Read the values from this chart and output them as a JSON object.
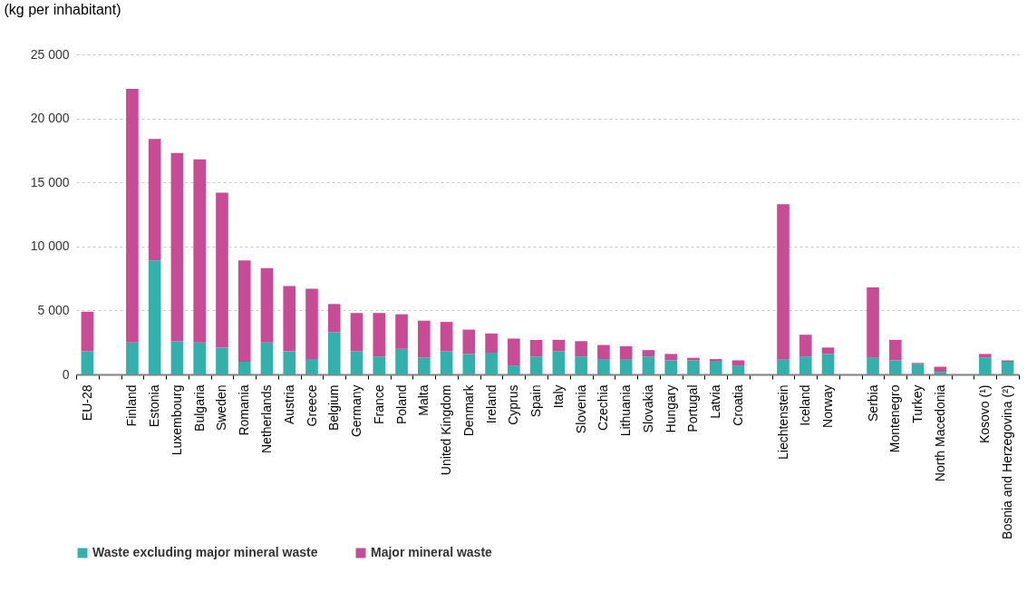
{
  "chart_data": {
    "type": "bar",
    "stacked": true,
    "ylabel": "(kg per inhabitant)",
    "categories": [
      "EU-28",
      null,
      "Finland",
      "Estonia",
      "Luxembourg",
      "Bulgaria",
      "Sweden",
      "Romania",
      "Netherlands",
      "Austria",
      "Greece",
      "Belgium",
      "Germany",
      "France",
      "Poland",
      "Malta",
      "United Kingdom",
      "Denmark",
      "Ireland",
      "Cyprus",
      "Spain",
      "Italy",
      "Slovenia",
      "Czechia",
      "Lithuania",
      "Slovakia",
      "Hungary",
      "Portugal",
      "Latvia",
      "Croatia",
      null,
      "Liechtenstein",
      "Iceland",
      "Norway",
      null,
      "Serbia",
      "Montenegro",
      "Turkey",
      "North Macedonia",
      null,
      "Kosovo (¹)",
      "Bosnia and Herzegovina (²)"
    ],
    "series": [
      {
        "name": "Waste excluding major mineral waste",
        "color": "#33b0ab",
        "values": [
          1800,
          null,
          2500,
          8900,
          2600,
          2500,
          2100,
          1000,
          2500,
          1800,
          1200,
          3300,
          1800,
          1400,
          2000,
          1300,
          1800,
          1600,
          1700,
          700,
          1400,
          1800,
          1400,
          1200,
          1200,
          1400,
          1100,
          1100,
          1000,
          700,
          null,
          1200,
          1400,
          1600,
          null,
          1300,
          1100,
          800,
          200,
          null,
          1300,
          1000
        ]
      },
      {
        "name": "Major mineral waste",
        "color": "#c84b96",
        "values": [
          3100,
          null,
          19800,
          9500,
          14700,
          14300,
          12100,
          7900,
          5800,
          5100,
          5500,
          2200,
          3000,
          3400,
          2700,
          2900,
          2300,
          1900,
          1500,
          2100,
          1300,
          900,
          1200,
          1100,
          1000,
          500,
          500,
          200,
          200,
          400,
          null,
          12100,
          1700,
          500,
          null,
          5500,
          1600,
          100,
          400,
          null,
          300,
          100
        ]
      }
    ],
    "ylim": [
      0,
      25000
    ],
    "yticks": [
      0,
      {
        "value": 5000,
        "label": "5 000"
      },
      {
        "value": 10000,
        "label": "10 000"
      },
      {
        "value": 15000,
        "label": "15 000"
      },
      {
        "value": 20000,
        "label": "20 000"
      },
      {
        "value": 25000,
        "label": "25 000"
      }
    ],
    "grid": "y",
    "legend": "bottom"
  }
}
